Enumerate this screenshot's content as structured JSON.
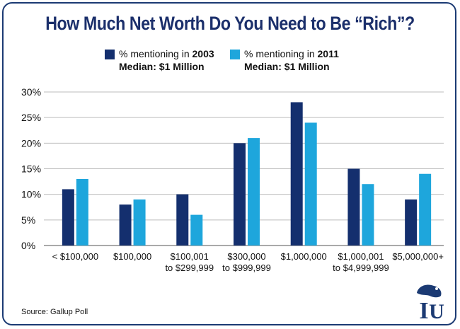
{
  "title": "How Much Net Worth Do You Need to Be “Rich”?",
  "legend": [
    {
      "prefix": "% mentioning in ",
      "year": "2003",
      "median": "Median: $1 Million",
      "color": "#142f6e"
    },
    {
      "prefix": "% mentioning in ",
      "year": "2011",
      "median": "Median: $1 Million",
      "color": "#1ea6dc"
    }
  ],
  "source": "Source: Gallup Poll",
  "logo": {
    "icon": "iu-bear-logo-icon",
    "letters": "IU"
  },
  "chart_data": {
    "type": "bar",
    "title": "How Much Net Worth Do You Need to Be “Rich”?",
    "categories": [
      [
        "< $100,000"
      ],
      [
        "$100,000"
      ],
      [
        "$100,001",
        "to $299,999"
      ],
      [
        "$300,000",
        "to $999,999"
      ],
      [
        "$1,000,000"
      ],
      [
        "$1,000,001",
        "to $4,999,999"
      ],
      [
        "$5,000,000+"
      ]
    ],
    "series": [
      {
        "name": "2003",
        "color": "#142f6e",
        "values": [
          11,
          8,
          10,
          20,
          28,
          15,
          9
        ]
      },
      {
        "name": "2011",
        "color": "#1ea6dc",
        "values": [
          13,
          9,
          6,
          21,
          24,
          12,
          14
        ]
      }
    ],
    "ylim": [
      0,
      30
    ],
    "yticks": [
      "0%",
      "5%",
      "10%",
      "15%",
      "20%",
      "25%",
      "30%"
    ],
    "ytick_values": [
      0,
      5,
      10,
      15,
      20,
      25,
      30
    ],
    "grid": true,
    "legend_position": "top"
  }
}
